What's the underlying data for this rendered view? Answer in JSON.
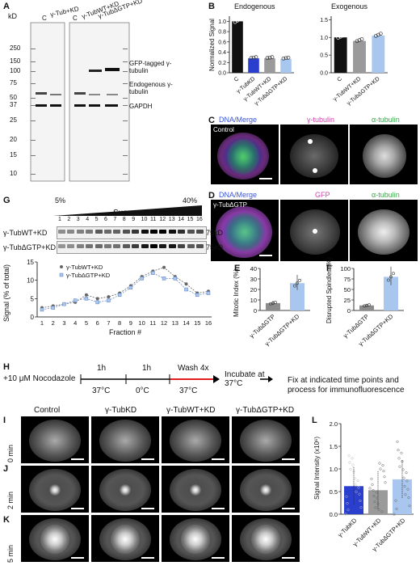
{
  "panel_labels": {
    "A": "A",
    "B": "B",
    "C": "C",
    "D": "D",
    "E": "E",
    "F": "F",
    "G": "G",
    "H": "H",
    "I": "I",
    "J": "J",
    "K": "K",
    "L": "L"
  },
  "blot_A": {
    "kd_label": "kD",
    "markers": [
      "250",
      "150",
      "100",
      "75",
      "50",
      "37",
      "25",
      "20",
      "15",
      "10"
    ],
    "lanes_left": [
      "C",
      "γ-Tub+KD"
    ],
    "lanes_right": [
      "C",
      "γ-TubWT+KD",
      "γ-TubΔGTP+KD"
    ],
    "band_labels": [
      "GFP-tagged γ-tubulin",
      "Endogenous γ-tubulin",
      "GAPDH"
    ]
  },
  "panel_B": {
    "titles": [
      "Endogenous",
      "Exogenous"
    ],
    "ylabel": "Normalized Signal",
    "yticks": [
      "0.0",
      "0.2",
      "0.4",
      "0.6",
      "0.8",
      "1.0"
    ]
  },
  "panel_C": {
    "labels": [
      "DNA/Merge",
      "γ-tubulin",
      "α-tubulin"
    ],
    "control": "Control"
  },
  "panel_D": {
    "labels": [
      "DNA/Merge",
      "GFP",
      "α-tubulin"
    ],
    "cell": "γ-TubΔGTP"
  },
  "panel_G": {
    "sucrose_low": "5%",
    "sucrose_high": "40%",
    "sucrose_label": "Sucrose",
    "fractions": [
      "1",
      "2",
      "3",
      "4",
      "5",
      "6",
      "7",
      "8",
      "9",
      "10",
      "11",
      "12",
      "13",
      "14",
      "15",
      "16"
    ],
    "blot_rows": [
      "γ-TubWT+KD",
      "γ-TubΔGTP+KD"
    ],
    "mw": [
      "75kD",
      "75kD"
    ],
    "ylabel": "Signal (% of total)",
    "xlabel": "Fraction #",
    "yticks": [
      "0",
      "5",
      "10",
      "15"
    ],
    "legend": [
      "γ-TubWT+KD",
      "γ-TubΔGTP+KD"
    ]
  },
  "panel_E": {
    "ylabel": "Mitotic Index (%)",
    "yticks": [
      "0",
      "10",
      "20",
      "30",
      "40"
    ],
    "categories": [
      "γ-TubΔGTP",
      "γ-TubΔGTP+KD"
    ]
  },
  "panel_F": {
    "ylabel": "Disrupted Spindles (%)",
    "yticks": [
      "0",
      "25",
      "50",
      "75",
      "100"
    ],
    "categories": [
      "γ-TubΔGTP",
      "γ-TubΔGTP+KD"
    ]
  },
  "panel_H": {
    "start": "+10 μM Nocodazole",
    "steps": [
      {
        "time": "1h",
        "temp": "37°C"
      },
      {
        "time": "1h",
        "temp": "0°C"
      },
      {
        "time": "Wash 4x",
        "temp": "37°C"
      }
    ],
    "incubate": "Incubate at 37°C",
    "fix": "Fix at indicated time points and process for immunofluorescence"
  },
  "panel_I_K": {
    "columns": [
      "Control",
      "γ-TubKD",
      "γ-TubWT+KD",
      "γ-TubΔGTP+KD"
    ],
    "rows": [
      "0 min",
      "2 min",
      "5 min"
    ]
  },
  "panel_L": {
    "ylabel": "Signal Intensity (x10⁶)",
    "yticks": [
      "0.0",
      "0.5",
      "1.0",
      "1.5",
      "2.0"
    ],
    "categories": [
      "γ-TubKD",
      "γ-TubWT+KD",
      "γ-TubΔGTP+KD"
    ]
  },
  "chart_data": [
    {
      "type": "bar",
      "title": "Endogenous",
      "ylabel": "Normalized Signal",
      "categories": [
        "C",
        "γ-TubKD",
        "γ-TubWT+KD",
        "γ-TubΔGTP+KD"
      ],
      "values": [
        1.0,
        0.28,
        0.28,
        0.27
      ],
      "colors": [
        "#111111",
        "#2b3fcf",
        "#9a9a9a",
        "#a9c7ee"
      ],
      "ylim": [
        0,
        1.1
      ]
    },
    {
      "type": "bar",
      "title": "Exogenous",
      "ylabel": "Normalized Signal",
      "categories": [
        "C",
        "γ-TubWT+KD",
        "γ-TubΔGTP+KD"
      ],
      "values": [
        1.0,
        0.9,
        1.05
      ],
      "colors": [
        "#111111",
        "#9a9a9a",
        "#a9c7ee"
      ],
      "ylim": [
        0,
        1.6
      ]
    },
    {
      "type": "line",
      "xlabel": "Fraction #",
      "ylabel": "Signal (% of total)",
      "x": [
        1,
        2,
        3,
        4,
        5,
        6,
        7,
        8,
        9,
        10,
        11,
        12,
        13,
        14,
        15,
        16
      ],
      "series": [
        {
          "name": "γ-TubWT+KD",
          "values": [
            2.5,
            3.0,
            3.5,
            4.0,
            6.0,
            5.0,
            5.5,
            6.5,
            8.5,
            11.0,
            12.5,
            13.5,
            11.0,
            9.0,
            6.5,
            7.0
          ]
        },
        {
          "name": "γ-TubΔGTP+KD",
          "values": [
            2.0,
            2.5,
            3.5,
            4.5,
            5.0,
            4.0,
            4.5,
            6.0,
            8.0,
            10.5,
            12.0,
            10.5,
            10.5,
            7.5,
            6.0,
            6.5
          ]
        }
      ],
      "ylim": [
        0,
        15
      ]
    },
    {
      "type": "bar",
      "ylabel": "Mitotic Index (%)",
      "categories": [
        "γ-TubΔGTP",
        "γ-TubΔGTP+KD"
      ],
      "values": [
        7,
        26
      ],
      "colors": [
        "#8c8c8c",
        "#a9c7ee"
      ],
      "ylim": [
        0,
        40
      ]
    },
    {
      "type": "bar",
      "ylabel": "Disrupted Spindles (%)",
      "categories": [
        "γ-TubΔGTP",
        "γ-TubΔGTP+KD"
      ],
      "values": [
        12,
        80
      ],
      "colors": [
        "#8c8c8c",
        "#a9c7ee"
      ],
      "ylim": [
        0,
        100
      ]
    },
    {
      "type": "bar",
      "ylabel": "Signal Intensity (x10⁶)",
      "categories": [
        "γ-TubKD",
        "γ-TubWT+KD",
        "γ-TubΔGTP+KD"
      ],
      "values": [
        0.62,
        0.53,
        0.77
      ],
      "colors": [
        "#2b3fcf",
        "#9a9a9a",
        "#a9c7ee"
      ],
      "ylim": [
        0,
        2.0
      ]
    }
  ]
}
